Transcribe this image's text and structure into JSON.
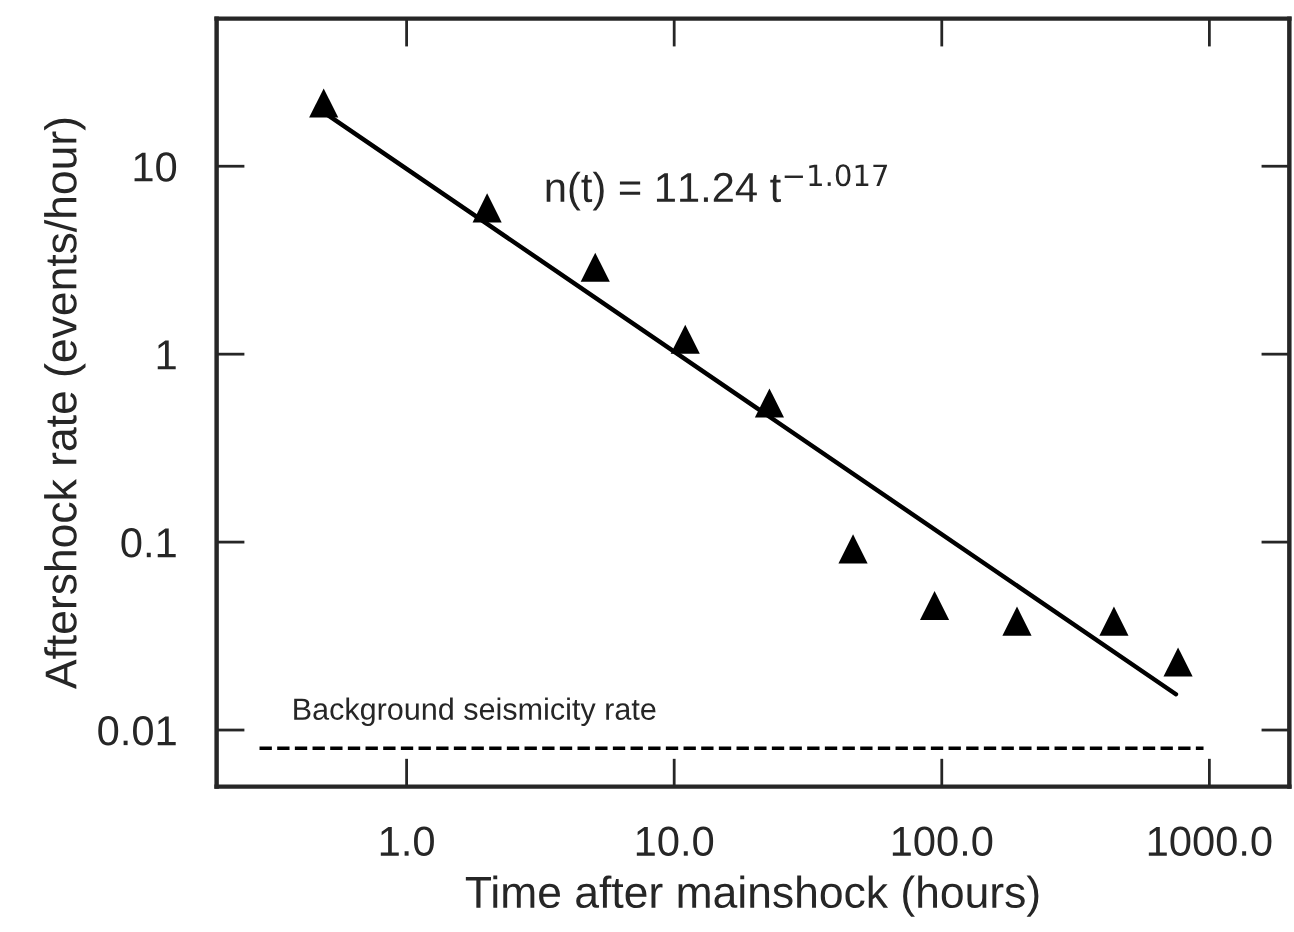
{
  "chart_data": {
    "type": "scatter",
    "xlabel": "Time after mainshock (hours)",
    "ylabel": "Aftershock rate (events/hour)",
    "log": "xy",
    "marker": "triangle",
    "grid": false,
    "legend": false,
    "xlim": [
      0.195,
      1990
    ],
    "ylim": [
      0.005,
      61
    ],
    "xticks": [
      {
        "value": 1,
        "label": "1.0"
      },
      {
        "value": 10,
        "label": "10.0"
      },
      {
        "value": 100,
        "label": "100.0"
      },
      {
        "value": 1000,
        "label": "1000.0"
      }
    ],
    "yticks": [
      0.01,
      0.1,
      1,
      10
    ],
    "series": [
      {
        "color": "#000000",
        "x": [
          0.49,
          2.0,
          5.07,
          11,
          22.7,
          46.6,
          94,
          191,
          440,
          764
        ],
        "values": [
          21.7,
          6.0,
          2.9,
          1.2,
          0.55,
          0.092,
          0.046,
          0.038,
          0.038,
          0.023
        ]
      },
      {
        "type": "line",
        "color": "#000000",
        "line_style": "solid",
        "marker": "none",
        "x": [
          0.5,
          750
        ],
        "values": [
          19,
          0.0155
        ]
      }
    ],
    "ref_lines": [
      {
        "axis": "y",
        "value": 0.008,
        "label": "Background seismicity rate",
        "color": "#000000",
        "line_style": "dashed"
      }
    ],
    "annotations": [
      "n(t) = 11.24 t$^{−1.017}$"
    ]
  }
}
